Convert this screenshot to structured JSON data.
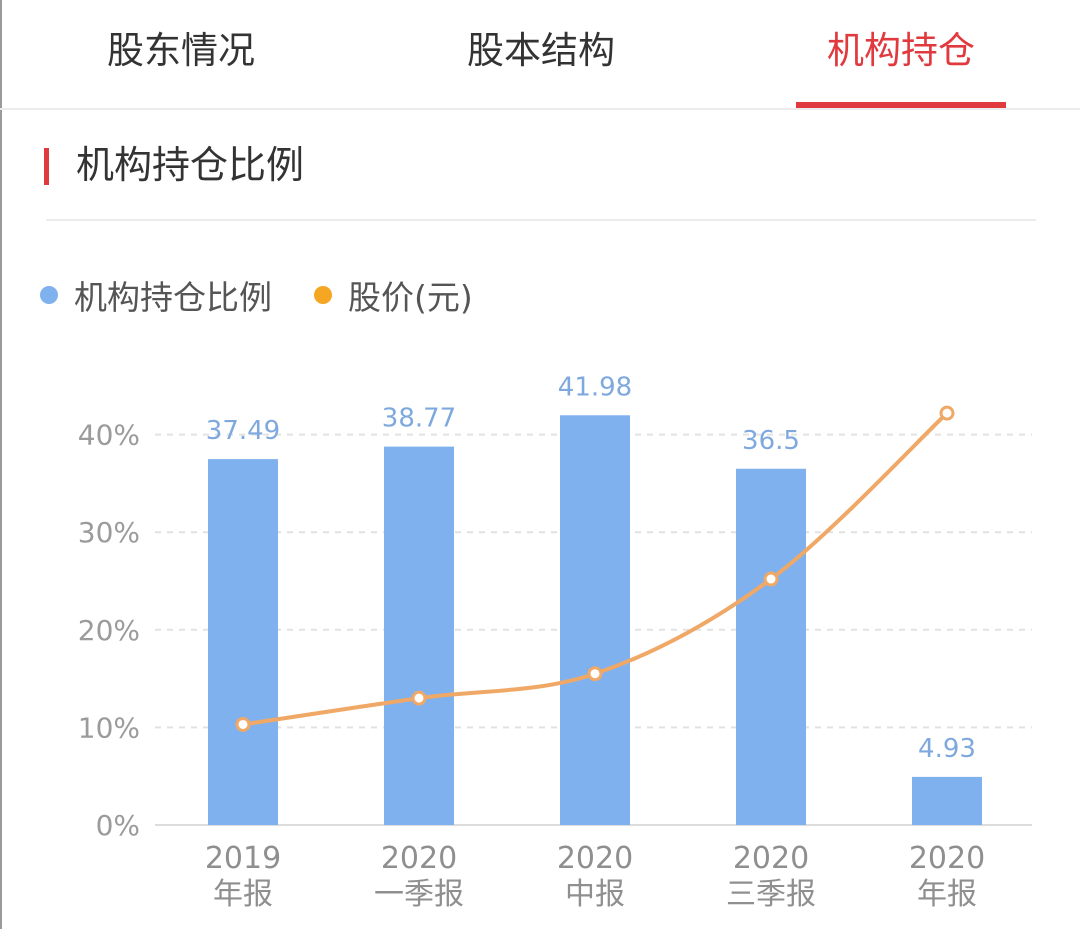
{
  "tabs": [
    {
      "label": "股东情况",
      "active": false
    },
    {
      "label": "股本结构",
      "active": false
    },
    {
      "label": "机构持仓",
      "active": true
    }
  ],
  "section": {
    "title": "机构持仓比例"
  },
  "legend": [
    {
      "label": "机构持仓比例",
      "color": "#7fb1ef"
    },
    {
      "label": "股价(元)",
      "color": "#f5a623"
    }
  ],
  "colors": {
    "accent": "#e03a3e",
    "bar": "#7fb1ef",
    "line": "#f0a866",
    "value_label": "#7fa9de"
  },
  "chart_data": {
    "type": "bar",
    "categories": [
      [
        "2019",
        "年报"
      ],
      [
        "2020",
        "一季报"
      ],
      [
        "2020",
        "中报"
      ],
      [
        "2020",
        "三季报"
      ],
      [
        "2020",
        "年报"
      ]
    ],
    "series": [
      {
        "name": "机构持仓比例",
        "type": "bar",
        "values": [
          37.49,
          38.77,
          41.98,
          36.5,
          4.93
        ],
        "value_labels": [
          "37.49",
          "38.77",
          "41.98",
          "36.5",
          "4.93"
        ]
      },
      {
        "name": "股价(元)",
        "type": "line",
        "values": [
          10.3,
          13.0,
          15.5,
          25.2,
          42.2
        ]
      }
    ],
    "y_ticks": [
      "0%",
      "10%",
      "20%",
      "30%",
      "40%"
    ],
    "ylim": [
      0,
      40
    ],
    "grid": true,
    "legend_position": "top-left"
  }
}
